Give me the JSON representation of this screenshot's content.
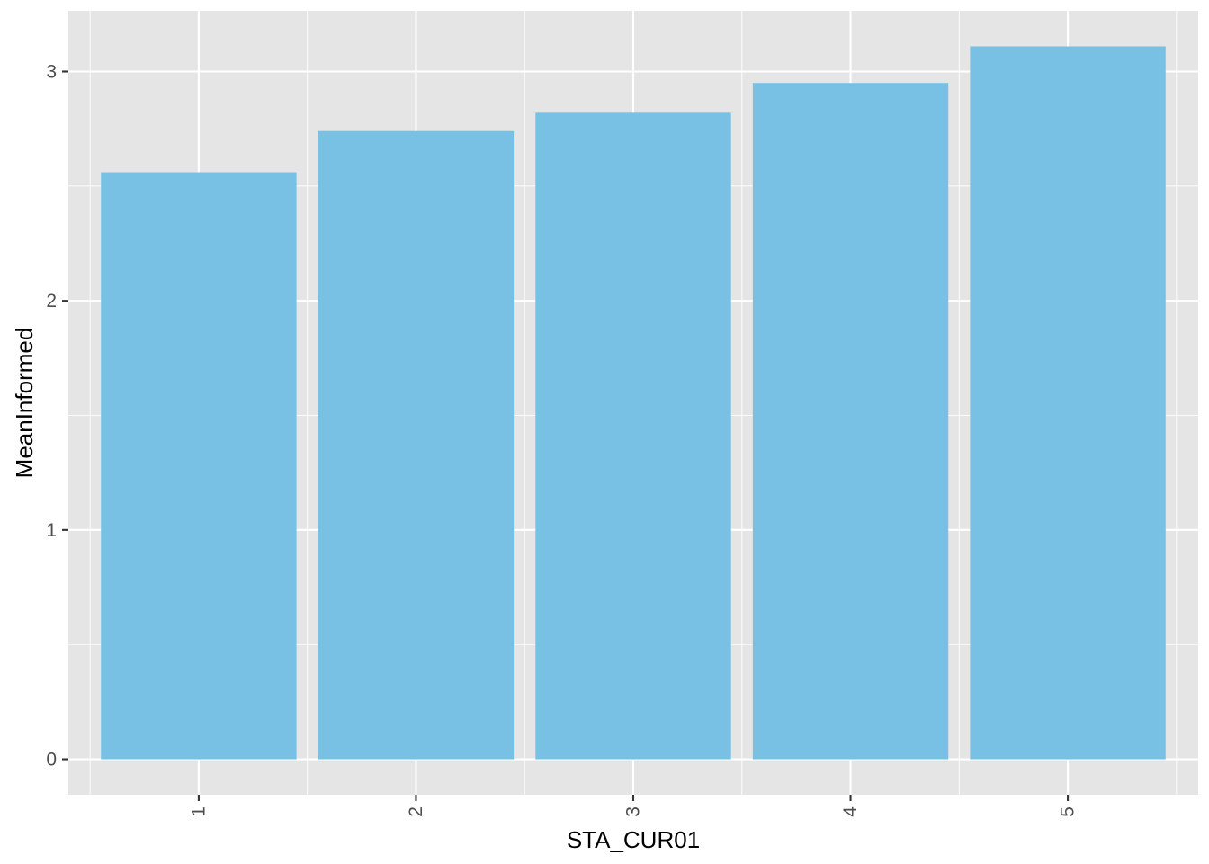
{
  "chart_data": {
    "type": "bar",
    "categories": [
      "1",
      "2",
      "3",
      "4",
      "5"
    ],
    "values": [
      2.56,
      2.74,
      2.82,
      2.95,
      3.11
    ],
    "title": "",
    "xlabel": "STA_CUR01",
    "ylabel": "MeanInformed",
    "ylim": [
      -0.155,
      3.265
    ],
    "yticks": [
      0,
      1,
      2,
      3
    ],
    "ytick_labels": [
      "0",
      "1",
      "2",
      "3"
    ],
    "xtick_rotation": -90,
    "grid": true,
    "legend": "none",
    "colors": {
      "bar": "#78c1e5",
      "panel": "#e5e5e5",
      "grid": "#ffffff",
      "tick_text": "#4d4d4d",
      "axis_title": "#000000"
    }
  }
}
